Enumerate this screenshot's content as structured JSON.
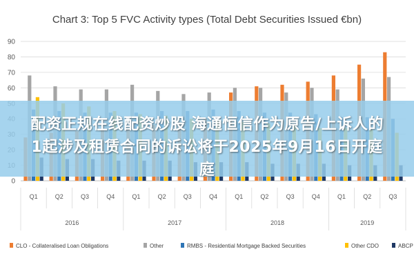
{
  "chart_data": {
    "type": "bar",
    "title": "Chart 3: Top 5 FVC Activity types (Total Debt Securities Issued €bn)",
    "xlabel": "",
    "ylabel": "",
    "ylim": [
      0,
      90
    ],
    "yticks": [
      0,
      10,
      20,
      30,
      40,
      50,
      60,
      70,
      80,
      90
    ],
    "grid": true,
    "legend_position": "bottom",
    "categories": [
      "Q1",
      "Q2",
      "Q3",
      "Q4",
      "Q1",
      "Q2",
      "Q3",
      "Q4",
      "Q1",
      "Q2",
      "Q3",
      "Q4",
      "Q1",
      "Q2",
      "Q3"
    ],
    "groups": [
      {
        "label": "2016",
        "count": 4
      },
      {
        "label": "2017",
        "count": 4
      },
      {
        "label": "2018",
        "count": 4
      },
      {
        "label": "2019",
        "count": 3
      }
    ],
    "series": [
      {
        "name": "CLO - Collateralised Loan Obligations",
        "color": "#ED7D31",
        "values": [
          28,
          31,
          32,
          33,
          34,
          36,
          38,
          40,
          57,
          61,
          62,
          64,
          68,
          75,
          83
        ]
      },
      {
        "name": "Other",
        "color": "#A5A5A5",
        "values": [
          68,
          61,
          59,
          59,
          62,
          58,
          56,
          57,
          60,
          60,
          57,
          60,
          59,
          66,
          67
        ]
      },
      {
        "name": "RMBS - Residential Mortgage Backed Securities",
        "color": "#2E75B6",
        "values": [
          46,
          45,
          44,
          44,
          44,
          45,
          45,
          46,
          45,
          44,
          44,
          43,
          41,
          41,
          40
        ]
      },
      {
        "name": "Other CDO",
        "color": "#FFC000",
        "values": [
          54,
          50,
          48,
          45,
          43,
          42,
          40,
          39,
          38,
          37,
          36,
          34,
          34,
          33,
          31
        ]
      },
      {
        "name": "ABCP",
        "color": "#1F3864",
        "values": [
          15,
          14,
          14,
          13,
          13,
          13,
          12,
          12,
          12,
          11,
          11,
          11,
          10,
          10,
          10
        ]
      }
    ]
  },
  "overlay": {
    "line1": "配资正规在线配资炒股 海通恒信作为原告/上诉人的",
    "line2": "1起涉及租赁合同的诉讼将于2025年9月16日开庭",
    "line3": "庭"
  }
}
